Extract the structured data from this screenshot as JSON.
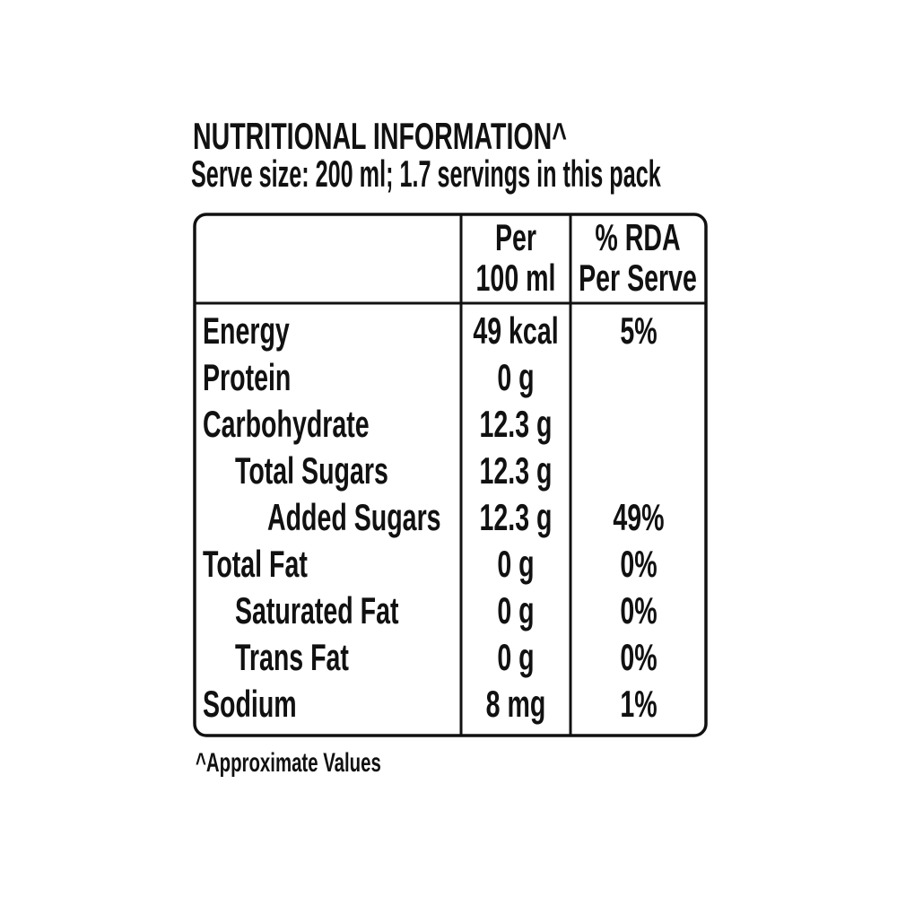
{
  "header": {
    "title": "NUTRITIONAL INFORMATION^",
    "serve_size": "Serve size: 200 ml; 1.7 servings in this pack"
  },
  "table": {
    "columns": [
      [
        "Per",
        "100 ml"
      ],
      [
        "% RDA",
        "Per Serve"
      ]
    ],
    "rows": [
      {
        "nutrient": "Energy",
        "per_100ml": "49 kcal",
        "rda_per_serve": "5%"
      },
      {
        "nutrient": "Protein",
        "per_100ml": "0 g"
      },
      {
        "nutrient": "Carbohydrate",
        "per_100ml": "12.3 g"
      },
      {
        "nutrient": "Total Sugars",
        "per_100ml": "12.3 g"
      },
      {
        "nutrient": "Added Sugars",
        "per_100ml": "12.3 g",
        "rda_per_serve": "49%"
      },
      {
        "nutrient": "Total Fat",
        "per_100ml": "0 g",
        "rda_per_serve": "0%"
      },
      {
        "nutrient": "Saturated Fat",
        "per_100ml": "0 g",
        "rda_per_serve": "0%"
      },
      {
        "nutrient": "Trans Fat",
        "per_100ml": "0 g",
        "rda_per_serve": "0%"
      },
      {
        "nutrient": "Sodium",
        "per_100ml": "8 mg",
        "rda_per_serve": "1%"
      }
    ]
  },
  "footnote": "^Approximate Values"
}
